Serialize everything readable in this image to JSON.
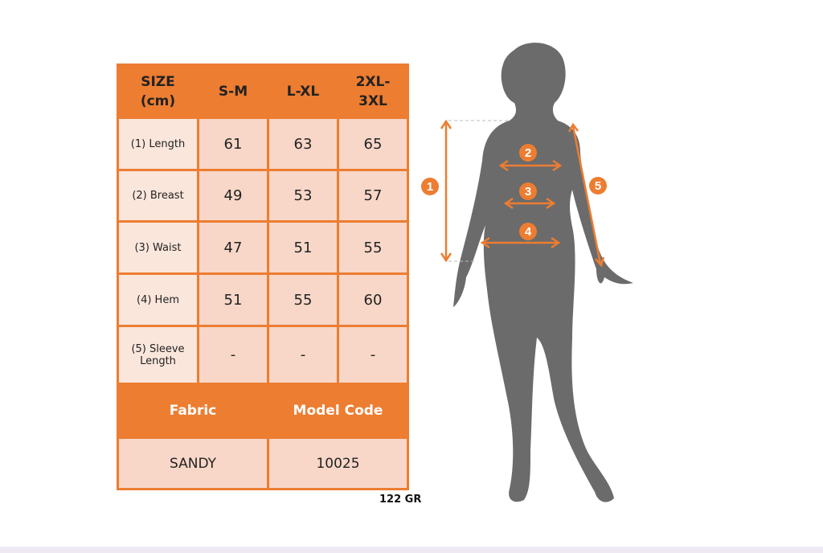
{
  "table": {
    "header": [
      "SIZE\n(cm)",
      "S-M",
      "L-XL",
      "2XL-\n3XL"
    ],
    "header_lines": [
      [
        "SIZE",
        "(cm)"
      ],
      [
        "S-M"
      ],
      [
        "L-XL"
      ],
      [
        "2XL-",
        "3XL"
      ]
    ],
    "rows": [
      {
        "label": "(1) Length",
        "values": [
          "61",
          "63",
          "65"
        ]
      },
      {
        "label": "(2) Breast",
        "values": [
          "49",
          "53",
          "57"
        ]
      },
      {
        "label": "(3) Waist",
        "values": [
          "47",
          "51",
          "55"
        ]
      },
      {
        "label": "(4) Hem",
        "values": [
          "51",
          "55",
          "60"
        ]
      },
      {
        "label_lines": [
          "(5) Sleeve",
          "Length"
        ],
        "values": [
          "-",
          "-",
          "-"
        ]
      }
    ],
    "fabric_label": "Fabric",
    "model_code_label": "Model Code",
    "fabric_value": "SANDY",
    "model_code_value": "10025"
  },
  "weight": "122 GR",
  "figure": {
    "markers": [
      "1",
      "2",
      "3",
      "4",
      "5"
    ],
    "accent_color": "#ED7D31",
    "silhouette_color": "#6B6B6B"
  }
}
